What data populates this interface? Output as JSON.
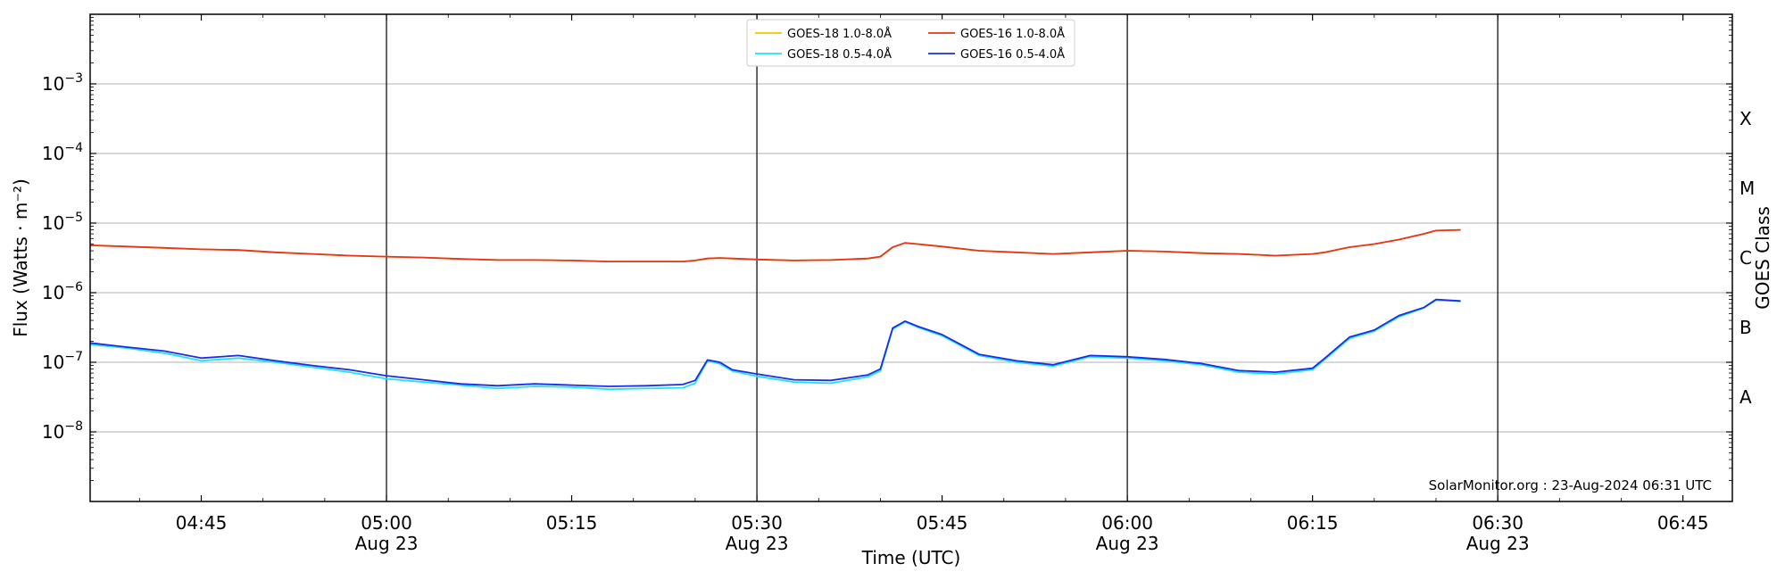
{
  "chart_data": {
    "type": "line",
    "xlabel": "Time (UTC)",
    "ylabel": "Flux (Watts · m⁻²)",
    "right_label": "GOES Class",
    "y_scale": "log",
    "ylim": [
      1e-09,
      0.01
    ],
    "xlim": [
      "2024-08-23 04:36",
      "2024-08-23 06:49"
    ],
    "grid": "horizontal at decades; vertical lines at half-hours",
    "legend_position": "top-center",
    "x_ticks": [
      {
        "time": "04:45",
        "date": ""
      },
      {
        "time": "05:00",
        "date": "Aug 23"
      },
      {
        "time": "05:15",
        "date": ""
      },
      {
        "time": "05:30",
        "date": "Aug 23"
      },
      {
        "time": "05:45",
        "date": ""
      },
      {
        "time": "06:00",
        "date": "Aug 23"
      },
      {
        "time": "06:15",
        "date": ""
      },
      {
        "time": "06:30",
        "date": "Aug 23"
      },
      {
        "time": "06:45",
        "date": ""
      }
    ],
    "y_ticks": [
      {
        "value": 1e-08,
        "base": "10",
        "exp": "−8"
      },
      {
        "value": 1e-07,
        "base": "10",
        "exp": "−7"
      },
      {
        "value": 1e-06,
        "base": "10",
        "exp": "−6"
      },
      {
        "value": 1e-05,
        "base": "10",
        "exp": "−5"
      },
      {
        "value": 0.0001,
        "base": "10",
        "exp": "−4"
      },
      {
        "value": 0.001,
        "base": "10",
        "exp": "−3"
      }
    ],
    "classes": [
      {
        "label": "A",
        "value": 3.16e-08
      },
      {
        "label": "B",
        "value": 3.16e-07
      },
      {
        "label": "C",
        "value": 3.16e-06
      },
      {
        "label": "M",
        "value": 3.16e-05
      },
      {
        "label": "X",
        "value": 0.000316
      }
    ],
    "x": [
      "04:36",
      "04:39",
      "04:42",
      "04:45",
      "04:48",
      "04:51",
      "04:54",
      "04:57",
      "05:00",
      "05:03",
      "05:06",
      "05:09",
      "05:12",
      "05:15",
      "05:18",
      "05:21",
      "05:24",
      "05:25",
      "05:26",
      "05:27",
      "05:28",
      "05:30",
      "05:33",
      "05:36",
      "05:39",
      "05:40",
      "05:41",
      "05:42",
      "05:43",
      "05:45",
      "05:48",
      "05:51",
      "05:54",
      "05:57",
      "06:00",
      "06:03",
      "06:06",
      "06:09",
      "06:12",
      "06:15",
      "06:16",
      "06:18",
      "06:20",
      "06:22",
      "06:24",
      "06:25",
      "06:27"
    ],
    "series": [
      {
        "name": "GOES-18 1.0-8.0Å",
        "color": "#f5c400",
        "values": [
          4.8e-06,
          4.6e-06,
          4.4e-06,
          4.2e-06,
          4.1e-06,
          3.8e-06,
          3.6e-06,
          3.4e-06,
          3.3e-06,
          3.2e-06,
          3.05e-06,
          2.95e-06,
          2.95e-06,
          2.9e-06,
          2.8e-06,
          2.8e-06,
          2.8e-06,
          2.9e-06,
          3.1e-06,
          3.15e-06,
          3.1e-06,
          3e-06,
          2.9e-06,
          2.95e-06,
          3.1e-06,
          3.3e-06,
          4.5e-06,
          5.2e-06,
          5e-06,
          4.6e-06,
          4e-06,
          3.8e-06,
          3.6e-06,
          3.8e-06,
          4e-06,
          3.9e-06,
          3.7e-06,
          3.6e-06,
          3.4e-06,
          3.6e-06,
          3.8e-06,
          4.5e-06,
          5e-06,
          5.8e-06,
          7e-06,
          7.8e-06,
          8e-06
        ]
      },
      {
        "name": "GOES-16 1.0-8.0Å",
        "color": "#e8341c",
        "values": [
          4.8e-06,
          4.6e-06,
          4.4e-06,
          4.2e-06,
          4.1e-06,
          3.8e-06,
          3.6e-06,
          3.4e-06,
          3.3e-06,
          3.2e-06,
          3.05e-06,
          2.95e-06,
          2.95e-06,
          2.9e-06,
          2.8e-06,
          2.8e-06,
          2.8e-06,
          2.9e-06,
          3.1e-06,
          3.15e-06,
          3.1e-06,
          3e-06,
          2.9e-06,
          2.95e-06,
          3.1e-06,
          3.3e-06,
          4.5e-06,
          5.2e-06,
          5e-06,
          4.6e-06,
          4e-06,
          3.8e-06,
          3.6e-06,
          3.8e-06,
          4e-06,
          3.9e-06,
          3.7e-06,
          3.6e-06,
          3.4e-06,
          3.6e-06,
          3.8e-06,
          4.5e-06,
          5e-06,
          5.8e-06,
          7e-06,
          7.8e-06,
          8e-06
        ]
      },
      {
        "name": "GOES-18 0.5-4.0Å",
        "color": "#22e0ff",
        "values": [
          1.8e-07,
          1.6e-07,
          1.35e-07,
          1.05e-07,
          1.15e-07,
          1e-07,
          8.5e-08,
          7.2e-08,
          5.8e-08,
          5.2e-08,
          4.7e-08,
          4.2e-08,
          4.5e-08,
          4.4e-08,
          4.1e-08,
          4.2e-08,
          4.3e-08,
          5e-08,
          1.05e-07,
          9.5e-08,
          7.5e-08,
          6.3e-08,
          5.2e-08,
          5e-08,
          6.2e-08,
          7.5e-08,
          3e-07,
          3.8e-07,
          3.2e-07,
          2.4e-07,
          1.25e-07,
          1e-07,
          8.8e-08,
          1.2e-07,
          1.15e-07,
          1.05e-07,
          9.2e-08,
          7.2e-08,
          6.8e-08,
          7.8e-08,
          1.1e-07,
          2.2e-07,
          2.8e-07,
          4.5e-07,
          6e-07,
          7.8e-07,
          7.5e-07
        ]
      },
      {
        "name": "GOES-16 0.5-4.0Å",
        "color": "#1a2ee8",
        "values": [
          1.9e-07,
          1.65e-07,
          1.45e-07,
          1.15e-07,
          1.25e-07,
          1.05e-07,
          9e-08,
          7.8e-08,
          6.4e-08,
          5.6e-08,
          4.9e-08,
          4.6e-08,
          4.9e-08,
          4.7e-08,
          4.5e-08,
          4.6e-08,
          4.8e-08,
          5.5e-08,
          1.08e-07,
          1e-07,
          7.8e-08,
          6.8e-08,
          5.6e-08,
          5.5e-08,
          6.6e-08,
          8e-08,
          3.1e-07,
          3.9e-07,
          3.3e-07,
          2.5e-07,
          1.3e-07,
          1.05e-07,
          9.2e-08,
          1.25e-07,
          1.2e-07,
          1.1e-07,
          9.6e-08,
          7.6e-08,
          7.2e-08,
          8.2e-08,
          1.15e-07,
          2.3e-07,
          2.9e-07,
          4.7e-07,
          6.1e-07,
          8e-07,
          7.6e-07
        ]
      }
    ],
    "legend_order": [
      0,
      2,
      1,
      3
    ],
    "annotation": "SolarMonitor.org : 23-Aug-2024 06:31 UTC"
  }
}
